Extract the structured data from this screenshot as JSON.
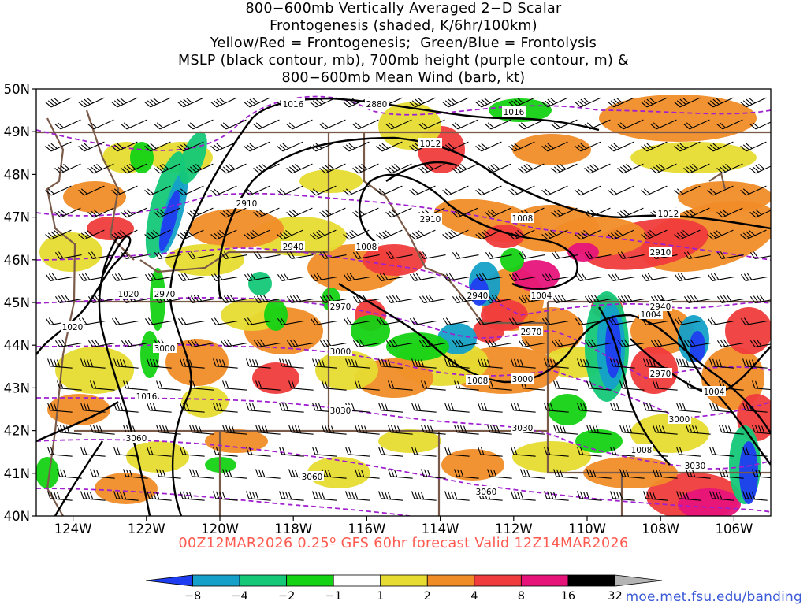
{
  "title": {
    "lines": [
      "800−600mb Vertically Averaged 2−D Scalar",
      "Frontogenesis (shaded, K/6hr/100km)",
      "Yellow/Red = Frontogenesis;  Green/Blue = Frontolysis",
      "MSLP (black contour, mb), 700mb height (purple contour, m) &",
      "800−600mb Mean Wind (barb, kt)"
    ]
  },
  "subtitle": "00Z12MAR2026 0.25º GFS 60hr forecast Valid 12Z14MAR2026",
  "credit": "moe.met.fsu.edu/banding",
  "map": {
    "lat_labels": [
      "50N",
      "49N",
      "48N",
      "47N",
      "46N",
      "45N",
      "44N",
      "43N",
      "42N",
      "41N",
      "40N"
    ],
    "lon_labels": [
      "124W",
      "122W",
      "120W",
      "118W",
      "116W",
      "114W",
      "112W",
      "110W",
      "108W",
      "106W"
    ],
    "lon_values": [
      -124,
      -122,
      -120,
      -118,
      -116,
      -114,
      -112,
      -110,
      -108,
      -106
    ],
    "lat_values": [
      50,
      49,
      48,
      47,
      46,
      45,
      44,
      43,
      42,
      41,
      40
    ],
    "lon_range": [
      -125.0,
      -105.0
    ],
    "lat_range": [
      40,
      50
    ],
    "mslp_labels": [
      "1016",
      "1016",
      "1012",
      "1012",
      "1008",
      "1008",
      "1004",
      "1004",
      "1004",
      "1008",
      "1016",
      "1020",
      "1020",
      "1008",
      "1016"
    ],
    "height_labels": [
      "2880",
      "2910",
      "2910",
      "2910",
      "2940",
      "2940",
      "2970",
      "2970",
      "2970",
      "2970",
      "3000",
      "3000",
      "3000",
      "3000",
      "3030",
      "3030",
      "3030",
      "3060",
      "3060",
      "3060",
      "2940"
    ],
    "colors": {
      "contour_mslp": "#000000",
      "contour_height": "#a020d0",
      "boundaries": "#7a5a48",
      "subtitle": "#ff5a50",
      "credit": "#3a5ad8"
    }
  },
  "colorbar": {
    "labels": [
      "−8",
      "−4",
      "−2",
      "−1",
      "1",
      "2",
      "4",
      "8",
      "16",
      "32"
    ],
    "colors": [
      "#1f3df0",
      "#14a0c8",
      "#14c878",
      "#14d214",
      "#ffffff",
      "#e6dc32",
      "#f08c28",
      "#f03c3c",
      "#e6147a",
      "#000000",
      "#b4b4b4"
    ]
  }
}
